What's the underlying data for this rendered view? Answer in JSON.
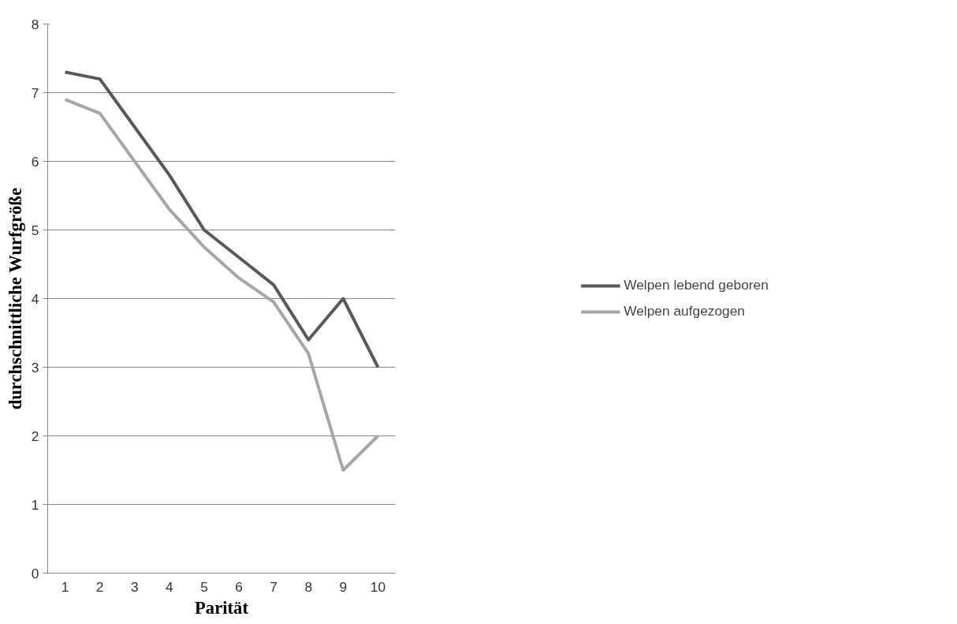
{
  "chart_data": {
    "type": "line",
    "xlabel": "Parität",
    "ylabel": "durchschnittliche Wurfgröße",
    "categories": [
      "1",
      "2",
      "3",
      "4",
      "5",
      "6",
      "7",
      "8",
      "9",
      "10"
    ],
    "series": [
      {
        "name": "Welpen lebend geboren",
        "color": "#595959",
        "values": [
          7.3,
          7.2,
          6.5,
          5.8,
          5.0,
          4.6,
          4.2,
          3.4,
          4.0,
          3.0
        ]
      },
      {
        "name": "Welpen aufgezogen",
        "color": "#a6a6a6",
        "values": [
          6.9,
          6.7,
          6.0,
          5.3,
          4.75,
          4.3,
          3.95,
          3.2,
          1.5,
          2.0
        ]
      }
    ],
    "ylim": [
      0,
      8
    ],
    "yticks": [
      0,
      1,
      2,
      3,
      4,
      5,
      6,
      7,
      8
    ],
    "grid": "y",
    "legend": "right"
  }
}
